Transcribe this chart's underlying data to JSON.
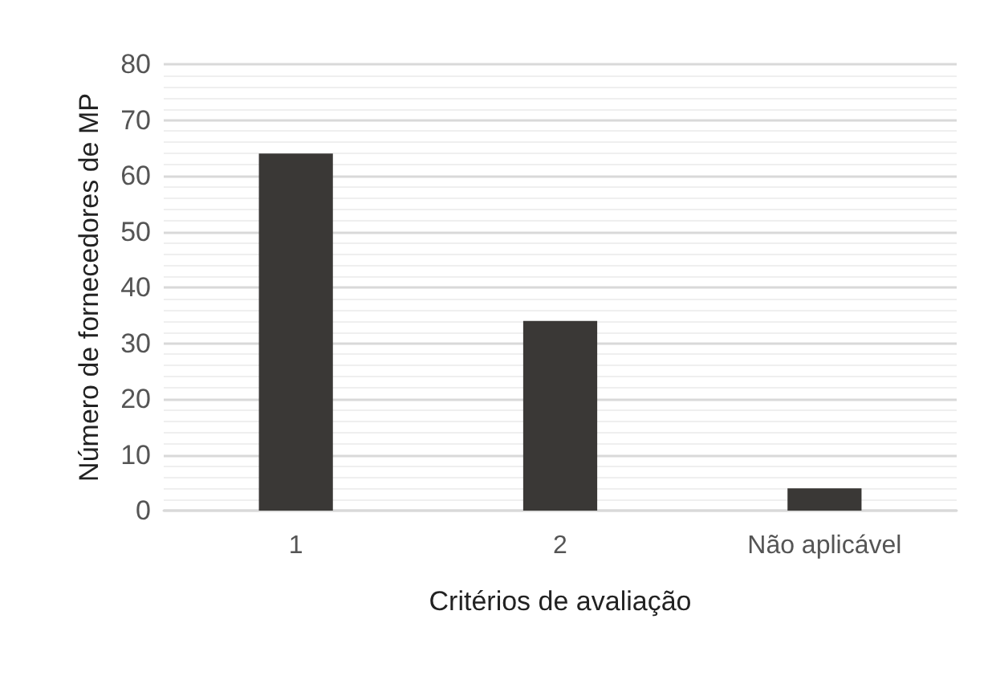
{
  "chart_data": {
    "type": "bar",
    "xlabel": "Critérios de avaliação",
    "ylabel": "Número de fornecedores de MP",
    "categories": [
      "1",
      "2",
      "Não aplicável"
    ],
    "values": [
      64,
      34,
      4
    ],
    "color": "#3a3836",
    "ylim": [
      0,
      80
    ],
    "yticks": [
      0,
      10,
      20,
      30,
      40,
      50,
      60,
      70,
      80
    ],
    "grid": "y"
  }
}
